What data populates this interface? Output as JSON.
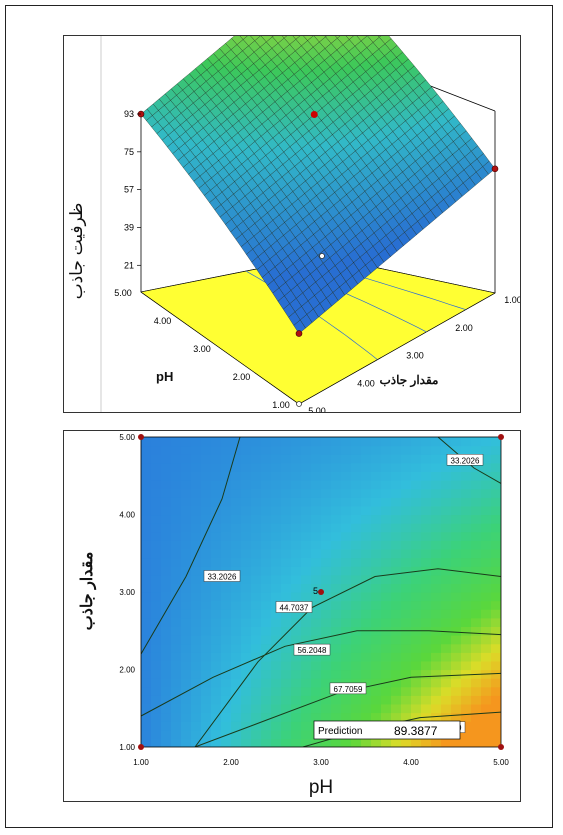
{
  "chart_data": [
    {
      "type": "surface3d",
      "zlabel": "ظرفیت جاذب",
      "xlabel": "مقدار جاذب",
      "ylabel": "pH",
      "z_ticks": [
        "93",
        "75",
        "57",
        "39",
        "21"
      ],
      "x_ticks": [
        "1.00",
        "2.00",
        "3.00",
        "4.00",
        "5.00"
      ],
      "y_ticks": [
        "1.00",
        "2.00",
        "3.00",
        "4.00",
        "5.00"
      ],
      "zlim": [
        21,
        93
      ],
      "xlim": [
        1,
        5
      ],
      "ylim": [
        1,
        5
      ],
      "surface_corners": [
        {
          "pH": 1,
          "adsorbent": 1,
          "capacity": 30
        },
        {
          "pH": 5,
          "adsorbent": 1,
          "capacity": 93
        },
        {
          "pH": 5,
          "adsorbent": 5,
          "capacity": 50
        },
        {
          "pH": 1,
          "adsorbent": 5,
          "capacity": 10
        }
      ],
      "center_point": {
        "pH": 3,
        "adsorbent": 3,
        "capacity": 57
      },
      "colors": {
        "low": "#3a8fd8",
        "mid": "#37c46a",
        "high": "#f0d040",
        "floor": "#ffff33"
      }
    },
    {
      "type": "contour",
      "xlabel": "pH",
      "ylabel": "مقدار جاذب",
      "x_ticks": [
        "1.00",
        "2.00",
        "3.00",
        "4.00",
        "5.00"
      ],
      "y_ticks": [
        "1.00",
        "2.00",
        "3.00",
        "4.00",
        "5.00"
      ],
      "xlim": [
        1,
        5
      ],
      "ylim": [
        1,
        5
      ],
      "contour_levels": [
        "33.2026",
        "44.7037",
        "56.2048",
        "67.7059",
        "79.2070"
      ],
      "center_label": "5",
      "prediction_label": "Prediction",
      "prediction_value": "89.3877",
      "colors": {
        "low": "#2d8fe6",
        "mid": "#3fd25a",
        "high": "#f5a020"
      }
    }
  ]
}
